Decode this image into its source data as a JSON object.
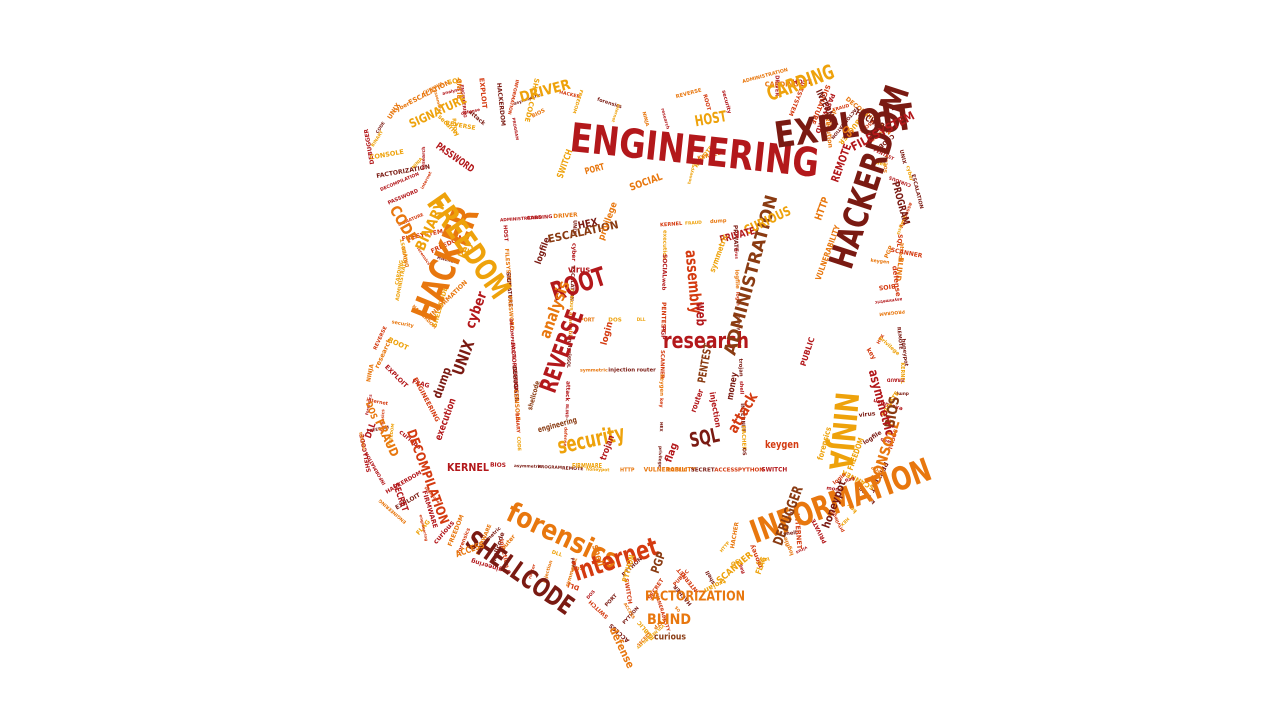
{
  "palette": {
    "dark_red": "#7a1a12",
    "red": "#b3181b",
    "orange_red": "#d43a10",
    "orange": "#e8770e",
    "amber": "#eea20b",
    "gold": "#f0b71c",
    "brown": "#8a3b12"
  },
  "words": [
    {
      "text": "ENGINEERING",
      "color": "#b3181b"
    },
    {
      "text": "EXPLOIT",
      "color": "#7a1a12"
    },
    {
      "text": "HACKERDOM",
      "color": "#7a1a12"
    },
    {
      "text": "INFORMATION",
      "color": "#e8770e"
    },
    {
      "text": "SHELLCODE",
      "color": "#7a1a12"
    },
    {
      "text": "HACKER",
      "color": "#e8770e"
    },
    {
      "text": "FREEDOM",
      "color": "#eea20b"
    },
    {
      "text": "forensics",
      "color": "#e8770e"
    },
    {
      "text": "internet",
      "color": "#d43a10"
    },
    {
      "text": "NINJA",
      "color": "#eea20b"
    },
    {
      "text": "research",
      "color": "#b3181b"
    },
    {
      "text": "REVERSE",
      "color": "#b3181b"
    },
    {
      "text": "ROOT",
      "color": "#b3181b"
    },
    {
      "text": "security",
      "color": "#eea20b"
    },
    {
      "text": "ADMINISTRATION",
      "color": "#8a3b12"
    },
    {
      "text": "CARDING",
      "color": "#eea20b"
    },
    {
      "text": "DRIVER",
      "color": "#eea20b"
    },
    {
      "text": "HOST",
      "color": "#eea20b"
    },
    {
      "text": "FILESYSTEM",
      "color": "#b3181b"
    },
    {
      "text": "SIGNATURE",
      "color": "#eea20b"
    },
    {
      "text": "PASSWORD",
      "color": "#b3181b"
    },
    {
      "text": "DECOMPILATION",
      "color": "#d43a10"
    },
    {
      "text": "FACTORIZATION",
      "color": "#e8770e"
    },
    {
      "text": "DEBUGGER",
      "color": "#8a3b12"
    },
    {
      "text": "CONSOLE",
      "color": "#e8770e"
    },
    {
      "text": "BINARY",
      "color": "#eea20b"
    },
    {
      "text": "CODE",
      "color": "#e8770e"
    },
    {
      "text": "UNIX",
      "color": "#7a1a12"
    },
    {
      "text": "cyber",
      "color": "#b3181b"
    },
    {
      "text": "ESCALATION",
      "color": "#8a3b12"
    },
    {
      "text": "CURIOUS",
      "color": "#eea20b"
    },
    {
      "text": "assembly",
      "color": "#d43a10"
    },
    {
      "text": "analysis",
      "color": "#e8770e"
    },
    {
      "text": "SQL",
      "color": "#7a1a12"
    },
    {
      "text": "attack",
      "color": "#d43a10"
    },
    {
      "text": "BLIND",
      "color": "#e8770e"
    },
    {
      "text": "defense",
      "color": "#e8770e"
    },
    {
      "text": "BIOS",
      "color": "#8a3b12"
    },
    {
      "text": "asymmetric",
      "color": "#b3181b"
    },
    {
      "text": "PROGRAM",
      "color": "#7a1a12"
    },
    {
      "text": "REMOTE",
      "color": "#b3181b"
    },
    {
      "text": "honeypot",
      "color": "#7a1a12"
    },
    {
      "text": "KERNEL",
      "color": "#b3181b"
    },
    {
      "text": "FRAUD",
      "color": "#e8770e"
    },
    {
      "text": "dump",
      "color": "#7a1a12"
    },
    {
      "text": "execution",
      "color": "#b3181b"
    },
    {
      "text": "SOCIAL",
      "color": "#e8770e"
    },
    {
      "text": "web",
      "color": "#b3181b"
    },
    {
      "text": "PENTEST",
      "color": "#8a3b12"
    },
    {
      "text": "PGP",
      "color": "#8a3b12"
    },
    {
      "text": "SCANNER",
      "color": "#eea20b"
    },
    {
      "text": "keygen",
      "color": "#d43a10"
    },
    {
      "text": "key",
      "color": "#eea20b"
    },
    {
      "text": "HEX",
      "color": "#7a1a12"
    },
    {
      "text": "privilege",
      "color": "#e8770e"
    },
    {
      "text": "PRIVATE",
      "color": "#b3181b"
    },
    {
      "text": "virus",
      "color": "#b3181b"
    },
    {
      "text": "logfile",
      "color": "#7a1a12"
    },
    {
      "text": "login",
      "color": "#d43a10"
    },
    {
      "text": "money",
      "color": "#7a1a12"
    },
    {
      "text": "flag",
      "color": "#b3181b"
    },
    {
      "text": "trojan",
      "color": "#b3181b"
    },
    {
      "text": "shell",
      "color": "#e8770e"
    },
    {
      "text": "INTERNET",
      "color": "#7a1a12"
    },
    {
      "text": "HACHER",
      "color": "#7a1a12"
    },
    {
      "text": "OS",
      "color": "#e8770e"
    },
    {
      "text": "HTTP",
      "color": "#e8770e"
    },
    {
      "text": "VULNERABILITY",
      "color": "#e8770e"
    },
    {
      "text": "PUBLIC",
      "color": "#b3181b"
    },
    {
      "text": "SECRET",
      "color": "#b3181b"
    },
    {
      "text": "ACCESS",
      "color": "#e8770e"
    },
    {
      "text": "PYTHON",
      "color": "#eea20b"
    },
    {
      "text": "SWITCH",
      "color": "#eea20b"
    },
    {
      "text": "PORT",
      "color": "#e8770e"
    },
    {
      "text": "DOS",
      "color": "#e8770e"
    },
    {
      "text": "DLL",
      "color": "#b3181b"
    },
    {
      "text": "symmetric",
      "color": "#eea20b"
    },
    {
      "text": "injection",
      "color": "#b3181b"
    },
    {
      "text": "router",
      "color": "#b3181b"
    },
    {
      "text": "engineering",
      "color": "#8a3b12"
    },
    {
      "text": "shellcode",
      "color": "#8a3b12"
    },
    {
      "text": "FIRMWARE",
      "color": "#eea20b"
    },
    {
      "text": "forensics",
      "color": "#eea20b"
    },
    {
      "text": "FREEDOM",
      "color": "#eea20b"
    },
    {
      "text": "curious",
      "color": "#8a3b12"
    },
    {
      "text": "FLAG",
      "color": "#eea20b"
    }
  ]
}
